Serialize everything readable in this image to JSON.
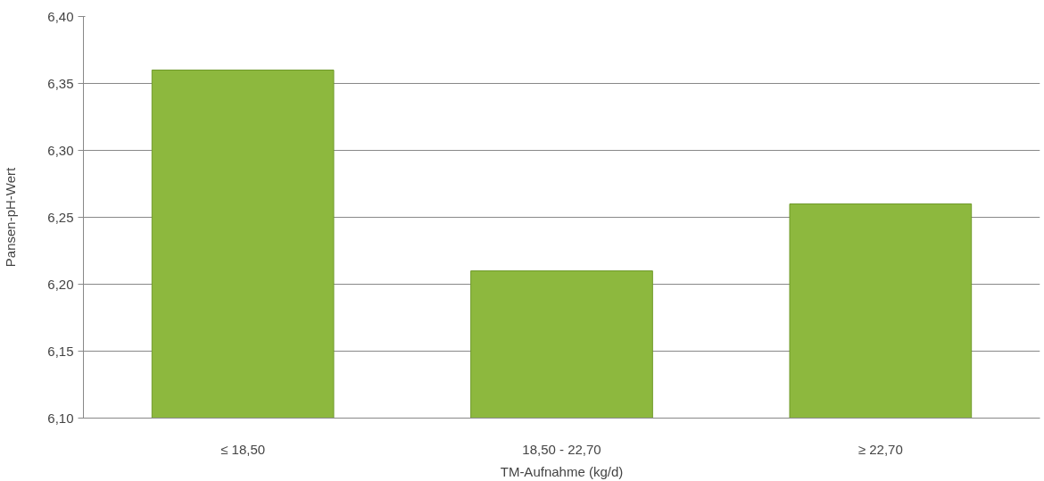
{
  "chart_data": {
    "type": "bar",
    "xlabel": "TM-Aufnahme (kg/d)",
    "ylabel": "Pansen-pH-Wert",
    "categories": [
      "≤ 18,50",
      "18,50 - 22,70",
      "≥ 22,70"
    ],
    "values": [
      6.36,
      6.21,
      6.26
    ],
    "color": "#8db83e",
    "ylim": [
      6.1,
      6.4
    ],
    "yticks": [
      {
        "value": 6.1,
        "label": "6,10"
      },
      {
        "value": 6.15,
        "label": "6,15"
      },
      {
        "value": 6.2,
        "label": "6,20"
      },
      {
        "value": 6.25,
        "label": "6,25"
      },
      {
        "value": 6.3,
        "label": "6,30"
      },
      {
        "value": 6.35,
        "label": "6,35"
      },
      {
        "value": 6.4,
        "label": "6,40"
      }
    ],
    "grid": "y"
  }
}
